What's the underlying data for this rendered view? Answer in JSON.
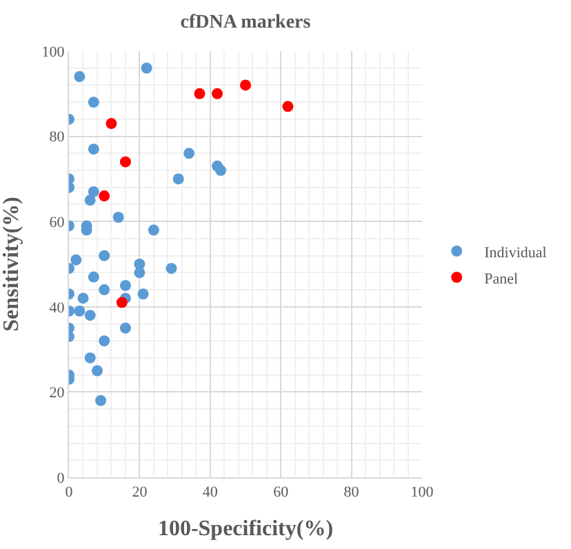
{
  "chart_data": {
    "type": "scatter",
    "title": "cfDNA markers",
    "xlabel": "100-Specificity(%)",
    "ylabel": "Sensitivity(%)",
    "xlim": [
      0,
      100
    ],
    "xticks": [
      0,
      20,
      40,
      60,
      80,
      100
    ],
    "ylim": [
      0,
      100
    ],
    "yticks": [
      0,
      20,
      40,
      60,
      80,
      100
    ],
    "grid": true,
    "legend": "right",
    "marker": "circle",
    "series": [
      {
        "name": "Individual",
        "color": "#5b9bd5",
        "x": [
          3,
          22,
          7,
          0,
          7,
          34,
          42,
          43,
          31,
          0,
          0,
          7,
          6,
          14,
          0,
          5,
          5,
          24,
          2,
          10,
          0,
          20,
          20,
          29,
          7,
          16,
          10,
          0,
          4,
          16,
          21,
          3,
          0,
          6,
          0,
          16,
          0,
          10,
          6,
          8,
          0,
          0,
          9
        ],
        "values": [
          94,
          96,
          88,
          84,
          77,
          76,
          73,
          72,
          70,
          70,
          68,
          67,
          65,
          61,
          59,
          59,
          58,
          58,
          51,
          52,
          49,
          50,
          48,
          49,
          47,
          45,
          44,
          43,
          42,
          42,
          43,
          39,
          39,
          38,
          35,
          35,
          33,
          32,
          28,
          25,
          24,
          23,
          18
        ]
      },
      {
        "name": "Panel",
        "color": "#ff0000",
        "x": [
          12,
          16,
          10,
          15,
          37,
          42,
          50,
          62
        ],
        "values": [
          83,
          74,
          66,
          41,
          90,
          90,
          92,
          87
        ]
      }
    ]
  }
}
